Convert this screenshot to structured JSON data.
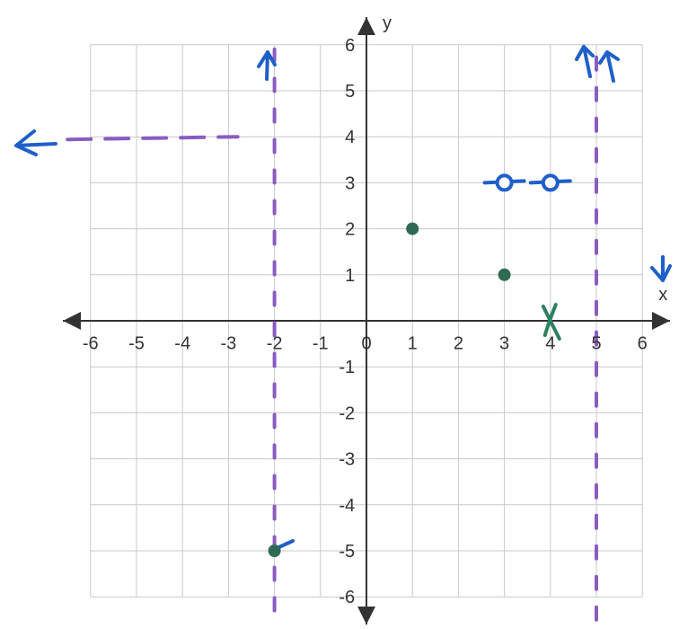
{
  "chart_data": {
    "type": "scatter",
    "title": "",
    "xlabel": "x",
    "ylabel": "y",
    "xlim": [
      -6,
      6
    ],
    "ylim": [
      -6,
      6
    ],
    "grid": true,
    "x_ticks": [
      "-6",
      "-5",
      "-4",
      "-3",
      "-2",
      "-1",
      "0",
      "1",
      "2",
      "3",
      "4",
      "5",
      "6"
    ],
    "y_ticks": [
      "6",
      "5",
      "4",
      "3",
      "2",
      "1",
      "-1",
      "-2",
      "-3",
      "-4",
      "-5",
      "-6"
    ],
    "closed_points": [
      {
        "x": 1,
        "y": 2
      },
      {
        "x": 3,
        "y": 1
      },
      {
        "x": -2,
        "y": -5
      }
    ],
    "open_points": [
      {
        "x": 3,
        "y": 3
      },
      {
        "x": 4,
        "y": 3
      }
    ],
    "vertical_asymptotes": [
      {
        "x": -2,
        "y_from": -6.3,
        "y_to": 5.9
      },
      {
        "x": 5,
        "y_from": -6.5,
        "y_to": 5.9
      }
    ],
    "horizontal_asymptotes": [
      {
        "y": 4,
        "x_from": -6.5,
        "x_to": -2.8
      }
    ],
    "x_intercept_mark": {
      "x": 4,
      "y": 0
    },
    "colors": {
      "grid": "#c8c8c8",
      "axis": "#333333",
      "asymptote": "#8a5cc2",
      "closed_point": "#2f6b52",
      "open_point": "#1f5fc9",
      "arrow": "#1f5fc9",
      "x_mark": "#2f8060"
    }
  }
}
